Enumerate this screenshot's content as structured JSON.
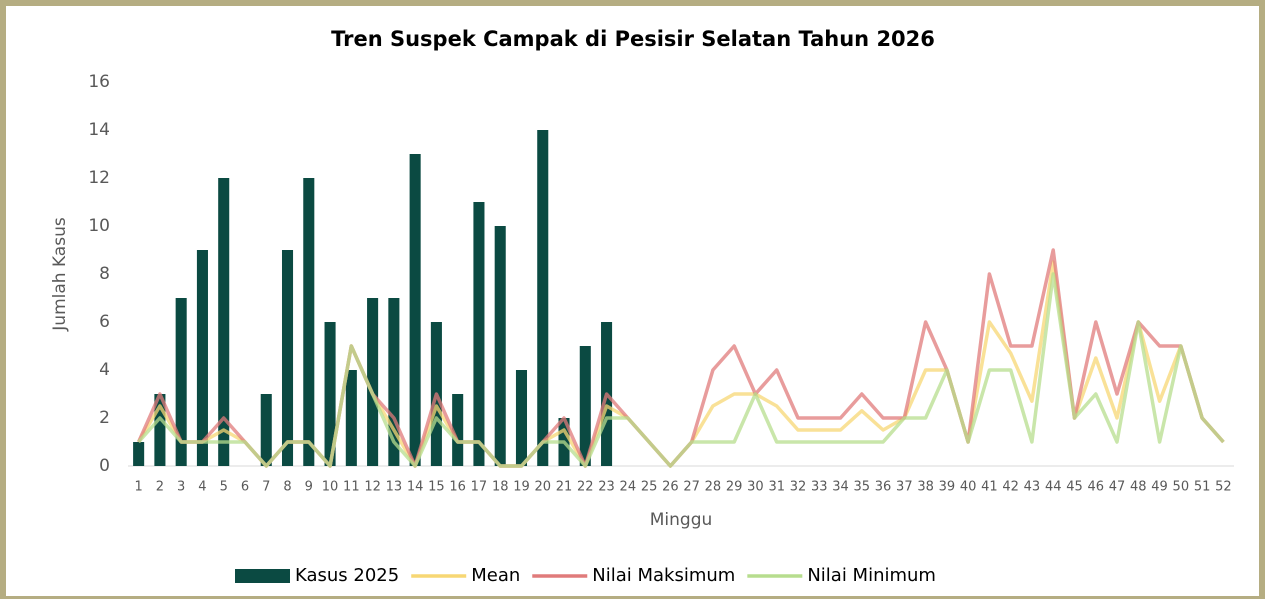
{
  "chart_data": {
    "type": "bar_line",
    "title": "Tren Suspek Campak di Pesisir Selatan Tahun 2026",
    "x_label": "Minggu",
    "y_label": "Jumlah Kasus",
    "categories": [
      "1",
      "2",
      "3",
      "4",
      "5",
      "6",
      "7",
      "8",
      "9",
      "10",
      "11",
      "12",
      "13",
      "14",
      "15",
      "16",
      "17",
      "18",
      "19",
      "20",
      "21",
      "22",
      "23",
      "24",
      "25",
      "26",
      "27",
      "28",
      "29",
      "30",
      "31",
      "32",
      "33",
      "34",
      "35",
      "36",
      "37",
      "38",
      "39",
      "40",
      "41",
      "42",
      "43",
      "44",
      "45",
      "46",
      "47",
      "48",
      "49",
      "50",
      "51",
      "52"
    ],
    "series": [
      {
        "name": "Kasus 2025",
        "type": "bar",
        "color": "#0b4a42",
        "values": [
          1,
          3,
          7,
          9,
          12,
          0,
          3,
          9,
          12,
          6,
          4,
          7,
          7,
          13,
          6,
          3,
          11,
          10,
          4,
          14,
          2,
          5,
          6,
          null,
          null,
          null,
          null,
          null,
          null,
          null,
          null,
          null,
          null,
          null,
          null,
          null,
          null,
          null,
          null,
          null,
          null,
          null,
          null,
          null,
          null,
          null,
          null,
          null,
          null,
          null,
          null,
          null
        ]
      },
      {
        "name": "Mean",
        "type": "line",
        "color": "#f7d774",
        "values": [
          1,
          2.5,
          1,
          1,
          1.5,
          1,
          0,
          1,
          1,
          0,
          5,
          3,
          1.5,
          0,
          2.5,
          1,
          1,
          0,
          0,
          1,
          1.5,
          0,
          2.5,
          2,
          1,
          0,
          1,
          2.5,
          3,
          3,
          2.5,
          1.5,
          1.5,
          1.5,
          2.3,
          1.5,
          2,
          4,
          4,
          1,
          6,
          4.7,
          2.7,
          8.5,
          2,
          4.5,
          2,
          6,
          2.7,
          5,
          2,
          1
        ]
      },
      {
        "name": "Nilai Maksimum",
        "type": "line",
        "color": "#e07b7b",
        "values": [
          1,
          3,
          1,
          1,
          2,
          1,
          0,
          1,
          1,
          0,
          5,
          3,
          2,
          0,
          3,
          1,
          1,
          0,
          0,
          1,
          2,
          0,
          3,
          2,
          1,
          0,
          1,
          4,
          5,
          3,
          4,
          2,
          2,
          2,
          3,
          2,
          2,
          6,
          4,
          1,
          8,
          5,
          5,
          9,
          2,
          6,
          3,
          6,
          5,
          5,
          2,
          1
        ]
      },
      {
        "name": "Nilai Minimum",
        "type": "line",
        "color": "#b7dd8e",
        "values": [
          1,
          2,
          1,
          1,
          1,
          1,
          0,
          1,
          1,
          0,
          5,
          3,
          1,
          0,
          2,
          1,
          1,
          0,
          0,
          1,
          1,
          0,
          2,
          2,
          1,
          0,
          1,
          1,
          1,
          3,
          1,
          1,
          1,
          1,
          1,
          1,
          2,
          2,
          4,
          1,
          4,
          4,
          1,
          8,
          2,
          3,
          1,
          6,
          1,
          5,
          2,
          1
        ]
      }
    ],
    "ylim": [
      0,
      16
    ],
    "yticks": [
      0,
      2,
      4,
      6,
      8,
      10,
      12,
      14,
      16
    ],
    "grid": false,
    "legend": "bottom"
  }
}
